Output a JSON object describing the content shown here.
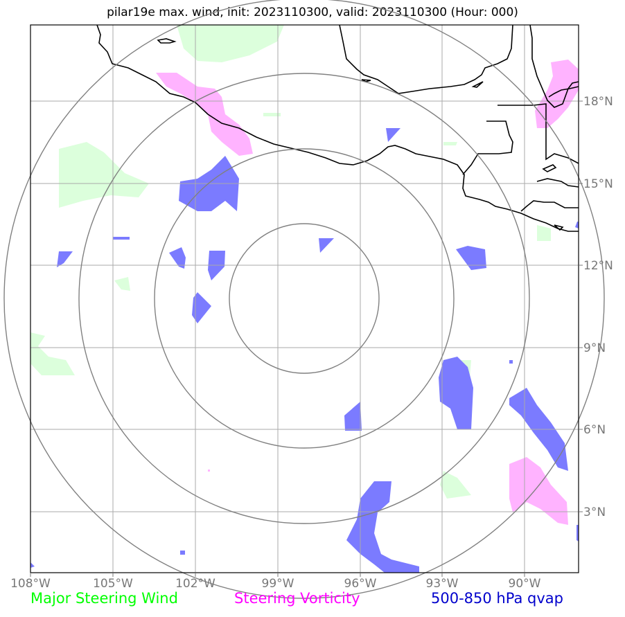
{
  "title": "pilar19e max. wind, init: 2023110300, valid: 2023110300 (Hour: 000)",
  "axes": {
    "lon_labels": [
      "108°W",
      "105°W",
      "102°W",
      "99°W",
      "96°W",
      "93°W",
      "90°W"
    ],
    "lat_labels": [
      "18°N",
      "15°N",
      "12°N",
      "9°N",
      "6°N",
      "3°N"
    ]
  },
  "legend": [
    {
      "label": "Major Steering Wind",
      "color": "#00ff00"
    },
    {
      "label": "Steering Vorticity",
      "color": "#ff00ff"
    },
    {
      "label": "500-850 hPa qvap",
      "color": "#0000cc"
    }
  ],
  "colors": {
    "wind_fill": "#dcffdc",
    "vorticity_fill": "#ffb3ff",
    "qvap_fill": "#7b7bff",
    "coast": "#000000",
    "grid": "#aaaaaa",
    "rings": "#808080"
  }
}
